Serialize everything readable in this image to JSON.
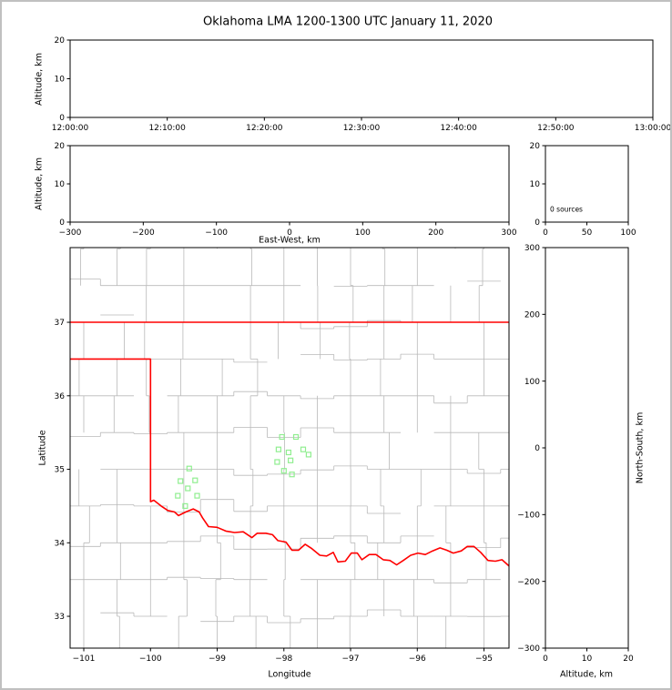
{
  "title": "Oklahoma LMA 1200-1300 UTC January 11, 2020",
  "colors": {
    "background": "#ffffff",
    "figure_border": "#c0c0c0",
    "axis": "#000000",
    "county_lines": "#b9b9b9",
    "state_border": "#ff0000",
    "station_marker": "#90ee90"
  },
  "chart_data": [
    {
      "id": "time_height",
      "type": "scatter",
      "title": "",
      "xlabel": "",
      "ylabel": "Altitude, km",
      "xlim": [
        0,
        6
      ],
      "ylim": [
        0,
        20
      ],
      "xticks": [
        0,
        1,
        2,
        3,
        4,
        5,
        6
      ],
      "xtick_labels": [
        "12:00:00",
        "12:10:00",
        "12:20:00",
        "12:30:00",
        "12:40:00",
        "12:50:00",
        "13:00:00"
      ],
      "yticks": [
        0,
        10,
        20
      ],
      "points": []
    },
    {
      "id": "ew_height",
      "type": "scatter",
      "xlabel": "East-West, km",
      "ylabel": "Altitude, km",
      "xlim": [
        -300,
        300
      ],
      "ylim": [
        0,
        20
      ],
      "xticks": [
        -300,
        -200,
        -100,
        0,
        100,
        200,
        300
      ],
      "yticks": [
        0,
        10,
        20
      ],
      "points": []
    },
    {
      "id": "source_histogram",
      "type": "line",
      "annotation": "0 sources",
      "xlim": [
        0,
        100
      ],
      "ylim": [
        0,
        20
      ],
      "xticks": [
        0,
        50,
        100
      ],
      "yticks": [
        0,
        10,
        20
      ],
      "points": []
    },
    {
      "id": "plan_view",
      "type": "scatter",
      "xlabel": "Longitude",
      "ylabel": "Latitude",
      "xlim": [
        -101.205,
        -94.625
      ],
      "ylim": [
        32.567,
        38.016
      ],
      "xticks": [
        -101,
        -100,
        -99,
        -98,
        -97,
        -96,
        -95
      ],
      "yticks": [
        33,
        34,
        35,
        36,
        37
      ],
      "marker": "open-square",
      "stations_lon_lat": [
        [
          -98.03,
          35.44
        ],
        [
          -97.82,
          35.44
        ],
        [
          -98.08,
          35.27
        ],
        [
          -97.93,
          35.23
        ],
        [
          -97.71,
          35.27
        ],
        [
          -97.63,
          35.2
        ],
        [
          -98.1,
          35.1
        ],
        [
          -97.9,
          35.12
        ],
        [
          -98.0,
          34.98
        ],
        [
          -97.88,
          34.93
        ],
        [
          -99.42,
          35.01
        ],
        [
          -99.55,
          34.84
        ],
        [
          -99.33,
          34.85
        ],
        [
          -99.44,
          34.74
        ],
        [
          -99.59,
          34.64
        ],
        [
          -99.3,
          34.64
        ],
        [
          -99.48,
          34.5
        ]
      ],
      "state_border_lines": {
        "kansas_border_lat_37": [
          [
            -101.21,
            37.0
          ],
          [
            -94.62,
            37.0
          ]
        ],
        "panhandle_west_and_red_river": [
          [
            -101.21,
            36.5
          ],
          [
            -100.0,
            36.5
          ],
          [
            -100.0,
            34.56
          ],
          [
            -99.95,
            34.58
          ],
          [
            -99.84,
            34.5
          ],
          [
            -99.74,
            34.44
          ],
          [
            -99.64,
            34.42
          ],
          [
            -99.58,
            34.37
          ],
          [
            -99.47,
            34.42
          ],
          [
            -99.36,
            34.46
          ],
          [
            -99.27,
            34.42
          ],
          [
            -99.22,
            34.34
          ],
          [
            -99.13,
            34.22
          ],
          [
            -99.0,
            34.21
          ],
          [
            -98.87,
            34.16
          ],
          [
            -98.74,
            34.14
          ],
          [
            -98.61,
            34.15
          ],
          [
            -98.48,
            34.07
          ],
          [
            -98.4,
            34.13
          ],
          [
            -98.27,
            34.13
          ],
          [
            -98.17,
            34.11
          ],
          [
            -98.09,
            34.03
          ],
          [
            -97.97,
            34.01
          ],
          [
            -97.88,
            33.9
          ],
          [
            -97.78,
            33.9
          ],
          [
            -97.68,
            33.98
          ],
          [
            -97.58,
            33.92
          ],
          [
            -97.46,
            33.83
          ],
          [
            -97.36,
            33.82
          ],
          [
            -97.26,
            33.87
          ],
          [
            -97.19,
            33.74
          ],
          [
            -97.08,
            33.75
          ],
          [
            -96.99,
            33.86
          ],
          [
            -96.9,
            33.86
          ],
          [
            -96.83,
            33.77
          ],
          [
            -96.72,
            33.84
          ],
          [
            -96.62,
            33.84
          ],
          [
            -96.51,
            33.77
          ],
          [
            -96.41,
            33.76
          ],
          [
            -96.31,
            33.7
          ],
          [
            -96.21,
            33.76
          ],
          [
            -96.1,
            33.83
          ],
          [
            -95.99,
            33.86
          ],
          [
            -95.88,
            33.84
          ],
          [
            -95.77,
            33.89
          ],
          [
            -95.66,
            33.93
          ],
          [
            -95.56,
            33.9
          ],
          [
            -95.46,
            33.86
          ],
          [
            -95.34,
            33.89
          ],
          [
            -95.25,
            33.95
          ],
          [
            -95.15,
            33.95
          ],
          [
            -95.05,
            33.87
          ],
          [
            -94.94,
            33.76
          ],
          [
            -94.83,
            33.75
          ],
          [
            -94.73,
            33.77
          ],
          [
            -94.62,
            33.68
          ]
        ]
      }
    },
    {
      "id": "height_ns",
      "type": "scatter",
      "xlabel": "Altitude, km",
      "ylabel": "North-South, km",
      "xlim": [
        0,
        20
      ],
      "ylim": [
        -300,
        300
      ],
      "xticks": [
        0,
        10,
        20
      ],
      "yticks": [
        -300,
        -200,
        -100,
        0,
        100,
        200,
        300
      ],
      "points": []
    }
  ]
}
